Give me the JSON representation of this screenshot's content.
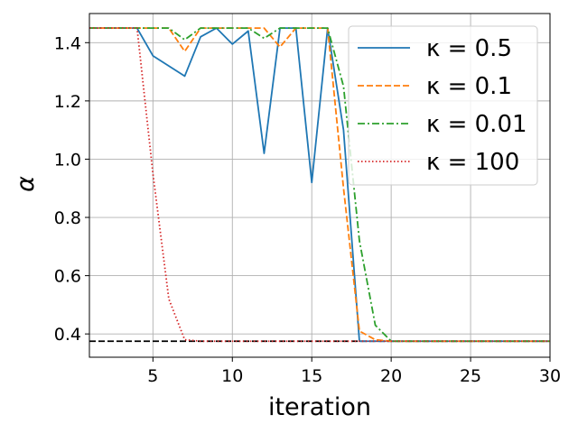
{
  "chart_data": {
    "type": "line",
    "xlabel": "iteration",
    "ylabel": "α",
    "xlim": [
      1,
      30
    ],
    "ylim": [
      0.32,
      1.5
    ],
    "xticks": [
      5,
      10,
      15,
      20,
      25,
      30
    ],
    "yticks": [
      0.4,
      0.6,
      0.8,
      1.0,
      1.2,
      1.4
    ],
    "ytick_labels": [
      "0.4",
      "0.6",
      "0.8",
      "1.0",
      "1.2",
      "1.4"
    ],
    "grid": true,
    "legend_position": "upper right",
    "x": [
      1,
      2,
      3,
      4,
      5,
      6,
      7,
      8,
      9,
      10,
      11,
      12,
      13,
      14,
      15,
      16,
      17,
      18,
      19,
      20,
      21,
      22,
      23,
      24,
      25,
      26,
      27,
      28,
      29,
      30
    ],
    "series": [
      {
        "name": "κ = 0.5",
        "color": "#1f77b4",
        "style": "solid",
        "values": [
          1.45,
          1.45,
          1.45,
          1.45,
          1.355,
          1.32,
          1.285,
          1.42,
          1.45,
          1.395,
          1.44,
          1.02,
          1.45,
          1.45,
          0.92,
          1.45,
          1.1,
          0.375,
          0.375,
          0.375,
          0.375,
          0.375,
          0.375,
          0.375,
          0.375,
          0.375,
          0.375,
          0.375,
          0.375,
          0.375
        ]
      },
      {
        "name": "κ = 0.1",
        "color": "#ff7f0e",
        "style": "dashed",
        "values": [
          1.45,
          1.45,
          1.45,
          1.45,
          1.45,
          1.45,
          1.37,
          1.45,
          1.45,
          1.45,
          1.45,
          1.45,
          1.385,
          1.45,
          1.45,
          1.45,
          0.9,
          0.41,
          0.38,
          0.375,
          0.375,
          0.375,
          0.375,
          0.375,
          0.375,
          0.375,
          0.375,
          0.375,
          0.375,
          0.375
        ]
      },
      {
        "name": "κ = 0.01",
        "color": "#2ca02c",
        "style": "dashdot",
        "values": [
          1.45,
          1.45,
          1.45,
          1.45,
          1.45,
          1.45,
          1.41,
          1.45,
          1.45,
          1.45,
          1.45,
          1.415,
          1.45,
          1.45,
          1.45,
          1.45,
          1.25,
          0.72,
          0.43,
          0.375,
          0.375,
          0.375,
          0.375,
          0.375,
          0.375,
          0.375,
          0.375,
          0.375,
          0.375,
          0.375
        ]
      },
      {
        "name": "κ = 100",
        "color": "#d62728",
        "style": "dotted",
        "values": [
          1.45,
          1.45,
          1.45,
          1.45,
          0.95,
          0.52,
          0.38,
          0.375,
          0.375,
          0.375,
          0.375,
          0.375,
          0.375,
          0.375,
          0.375,
          0.375,
          0.375,
          0.375,
          0.375,
          0.375,
          0.375,
          0.375,
          0.375,
          0.375,
          0.375,
          0.375,
          0.375,
          0.375,
          0.375,
          0.375
        ]
      }
    ],
    "reference_line": {
      "y": 0.375,
      "color": "#000000",
      "style": "dashed"
    }
  }
}
